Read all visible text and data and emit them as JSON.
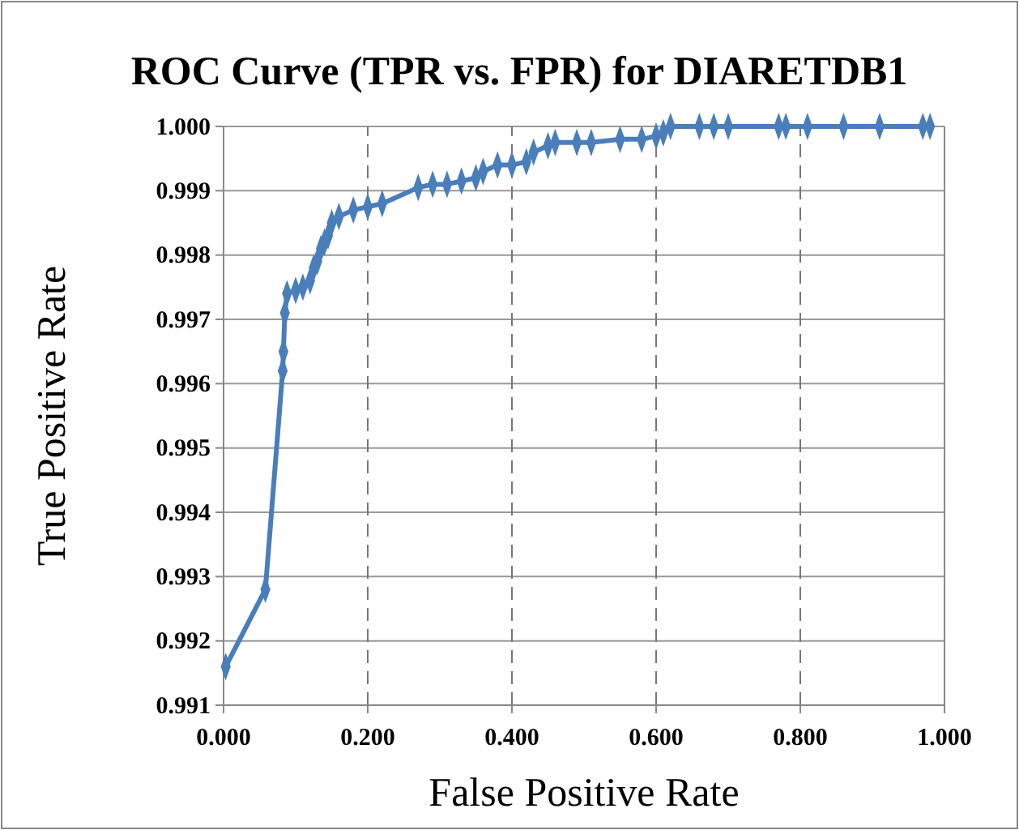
{
  "chart_data": {
    "type": "line",
    "title": "ROC Curve (TPR  vs. FPR) for DIARETDB1",
    "xlabel": "False Positive Rate",
    "ylabel": "True Positive Rate",
    "xlim": [
      0,
      1
    ],
    "xticks": [
      {
        "value": 0,
        "label": "0.000"
      },
      {
        "value": 0.2,
        "label": "0.200"
      },
      {
        "value": 0.4,
        "label": "0.400"
      },
      {
        "value": 0.6,
        "label": "0.600"
      },
      {
        "value": 0.8,
        "label": "0.800"
      },
      {
        "value": 1,
        "label": "1.000"
      }
    ],
    "ylim": [
      0.991,
      1
    ],
    "yticks": [
      0.991,
      0.992,
      0.993,
      0.994,
      0.995,
      0.996,
      0.997,
      0.998,
      0.999,
      {
        "value": 1,
        "label": "1.000"
      }
    ],
    "grid": true,
    "marker": "diamond",
    "line_style": "solid",
    "series": [
      {
        "color": "#4a7ebb",
        "x": [
          0.003,
          0.058,
          0.082,
          0.083,
          0.085,
          0.088,
          0.1,
          0.11,
          0.12,
          0.125,
          0.13,
          0.135,
          0.14,
          0.145,
          0.15,
          0.16,
          0.18,
          0.2,
          0.22,
          0.27,
          0.29,
          0.31,
          0.33,
          0.35,
          0.36,
          0.38,
          0.4,
          0.42,
          0.43,
          0.45,
          0.46,
          0.49,
          0.51,
          0.55,
          0.58,
          0.6,
          0.61,
          0.62,
          0.66,
          0.68,
          0.7,
          0.77,
          0.78,
          0.81,
          0.86,
          0.91,
          0.97,
          0.98
        ],
        "values": [
          0.9916,
          0.9928,
          0.9962,
          0.9965,
          0.9971,
          0.9974,
          0.99745,
          0.9975,
          0.9976,
          0.9978,
          0.9979,
          0.9981,
          0.9982,
          0.9983,
          0.9985,
          0.9986,
          0.9987,
          0.99875,
          0.9988,
          0.99905,
          0.9991,
          0.9991,
          0.99915,
          0.9992,
          0.9993,
          0.9994,
          0.9994,
          0.99945,
          0.9996,
          0.9997,
          0.99975,
          0.99975,
          0.99975,
          0.9998,
          0.9998,
          0.99985,
          0.9999,
          1.0,
          1.0,
          1.0,
          1.0,
          1.0,
          1.0,
          1.0,
          1.0,
          1.0,
          1.0,
          1.0
        ]
      }
    ]
  }
}
